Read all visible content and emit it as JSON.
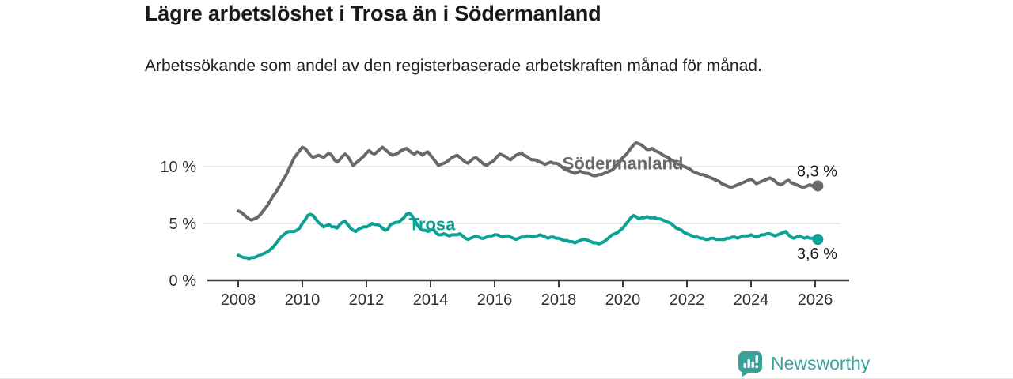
{
  "header": {
    "title": "Lägre arbetslöshet i Trosa än i Södermanland",
    "subtitle": "Arbetssökande som andel av den registerbaserade arbetskraften månad för månad."
  },
  "footer": {
    "brand": "Newsworthy",
    "brand_color": "#3ba29a",
    "logo_icon": "bar-chart-speech-bubble-icon"
  },
  "colors": {
    "axis": "#3a3a3a",
    "gridline": "#d9d9d9",
    "tick_text": "#2e2e2e",
    "value_label_text": "#1a1a1a"
  },
  "chart_data": {
    "type": "line",
    "unit": "%",
    "x_start": {
      "year": 2008,
      "month": 1
    },
    "x_end": {
      "year": 2026,
      "month": 2
    },
    "x_tick_labels": [
      "2008",
      "2010",
      "2012",
      "2014",
      "2016",
      "2018",
      "2020",
      "2022",
      "2024",
      "2026"
    ],
    "x_tick_years": [
      2008,
      2010,
      2012,
      2014,
      2016,
      2018,
      2020,
      2022,
      2024,
      2026
    ],
    "y_ticks": [
      {
        "value": 0,
        "label": "0 %"
      },
      {
        "value": 5,
        "label": "5 %"
      },
      {
        "value": 10,
        "label": "10 %"
      }
    ],
    "ylim": [
      0,
      12.7
    ],
    "grid": "horizontal",
    "legend_position": "inline-labels",
    "series": [
      {
        "name": "Södermanland",
        "color": "#67696c",
        "end_value": 8.3,
        "end_label": "8,3 %",
        "end_label_position": "above",
        "label_anchor": {
          "year": 2020.0,
          "pct": 10.3
        },
        "values": [
          6.1,
          6.0,
          5.8,
          5.6,
          5.4,
          5.3,
          5.4,
          5.5,
          5.7,
          6.0,
          6.3,
          6.6,
          7.0,
          7.4,
          7.7,
          8.1,
          8.5,
          8.9,
          9.3,
          9.8,
          10.3,
          10.8,
          11.1,
          11.4,
          11.7,
          11.6,
          11.3,
          11.0,
          10.8,
          10.9,
          11.0,
          10.9,
          10.8,
          11.0,
          11.2,
          11.0,
          10.6,
          10.4,
          10.6,
          10.9,
          11.1,
          10.9,
          10.5,
          10.1,
          10.3,
          10.5,
          10.7,
          10.9,
          11.2,
          11.4,
          11.2,
          11.1,
          11.3,
          11.5,
          11.7,
          11.5,
          11.3,
          11.1,
          11.0,
          11.1,
          11.2,
          11.4,
          11.5,
          11.6,
          11.4,
          11.2,
          11.1,
          11.3,
          11.2,
          11.0,
          11.2,
          11.3,
          11.0,
          10.7,
          10.4,
          10.1,
          10.2,
          10.3,
          10.4,
          10.6,
          10.8,
          10.9,
          11.0,
          10.8,
          10.6,
          10.4,
          10.3,
          10.5,
          10.7,
          10.8,
          10.6,
          10.4,
          10.2,
          10.1,
          10.3,
          10.4,
          10.6,
          10.9,
          11.1,
          11.0,
          10.9,
          10.7,
          10.6,
          10.8,
          11.0,
          11.1,
          11.2,
          11.0,
          10.9,
          10.7,
          10.6,
          10.6,
          10.5,
          10.4,
          10.3,
          10.2,
          10.3,
          10.4,
          10.3,
          10.3,
          10.2,
          10.0,
          9.8,
          9.7,
          9.6,
          9.5,
          9.4,
          9.5,
          9.6,
          9.5,
          9.4,
          9.4,
          9.3,
          9.2,
          9.2,
          9.3,
          9.3,
          9.4,
          9.5,
          9.6,
          9.7,
          9.9,
          10.2,
          10.5,
          10.8,
          11.0,
          11.3,
          11.6,
          11.9,
          12.1,
          12.0,
          11.9,
          11.7,
          11.5,
          11.5,
          11.6,
          11.4,
          11.3,
          11.2,
          11.0,
          10.9,
          10.8,
          10.6,
          10.5,
          10.3,
          10.2,
          10.1,
          10.0,
          9.9,
          9.8,
          9.6,
          9.5,
          9.4,
          9.3,
          9.3,
          9.2,
          9.1,
          9.0,
          8.9,
          8.8,
          8.7,
          8.5,
          8.4,
          8.3,
          8.2,
          8.2,
          8.3,
          8.4,
          8.5,
          8.6,
          8.7,
          8.8,
          8.9,
          8.7,
          8.5,
          8.6,
          8.7,
          8.8,
          8.9,
          9.0,
          8.9,
          8.7,
          8.5,
          8.4,
          8.5,
          8.7,
          8.8,
          8.6,
          8.5,
          8.4,
          8.3,
          8.2,
          8.2,
          8.3,
          8.4,
          8.3,
          8.2,
          8.3
        ]
      },
      {
        "name": "Trosa",
        "color": "#0ba295",
        "end_value": 3.6,
        "end_label": "3,6 %",
        "end_label_position": "below",
        "label_anchor": {
          "year": 2014.05,
          "pct": 4.95
        },
        "values": [
          2.2,
          2.1,
          2.0,
          2.0,
          1.9,
          2.0,
          2.0,
          2.1,
          2.2,
          2.3,
          2.4,
          2.5,
          2.7,
          2.9,
          3.2,
          3.5,
          3.8,
          4.0,
          4.2,
          4.3,
          4.3,
          4.3,
          4.4,
          4.6,
          5.0,
          5.3,
          5.7,
          5.8,
          5.7,
          5.4,
          5.1,
          4.9,
          4.7,
          4.8,
          4.9,
          4.7,
          4.7,
          4.6,
          4.9,
          5.1,
          5.2,
          4.9,
          4.6,
          4.4,
          4.3,
          4.5,
          4.6,
          4.7,
          4.7,
          4.8,
          5.0,
          4.9,
          4.9,
          4.8,
          4.6,
          4.4,
          4.5,
          4.9,
          5.0,
          5.1,
          5.1,
          5.3,
          5.5,
          5.8,
          5.9,
          5.7,
          5.3,
          4.9,
          4.6,
          4.4,
          4.4,
          4.3,
          4.4,
          4.5,
          4.2,
          4.0,
          4.0,
          4.1,
          4.0,
          3.9,
          4.0,
          4.0,
          4.0,
          4.1,
          3.9,
          3.7,
          3.6,
          3.7,
          3.8,
          3.9,
          3.8,
          3.7,
          3.7,
          3.8,
          3.9,
          3.9,
          4.0,
          4.0,
          3.9,
          3.8,
          3.9,
          3.9,
          3.8,
          3.7,
          3.6,
          3.7,
          3.8,
          3.8,
          3.9,
          3.9,
          3.8,
          3.9,
          3.9,
          4.0,
          3.9,
          3.8,
          3.7,
          3.8,
          3.8,
          3.7,
          3.7,
          3.6,
          3.5,
          3.5,
          3.4,
          3.4,
          3.3,
          3.4,
          3.5,
          3.6,
          3.6,
          3.5,
          3.4,
          3.3,
          3.3,
          3.2,
          3.3,
          3.4,
          3.6,
          3.8,
          4.0,
          4.1,
          4.2,
          4.4,
          4.6,
          4.9,
          5.2,
          5.5,
          5.7,
          5.6,
          5.4,
          5.5,
          5.5,
          5.6,
          5.5,
          5.5,
          5.5,
          5.4,
          5.4,
          5.3,
          5.2,
          5.1,
          5.0,
          4.8,
          4.6,
          4.5,
          4.4,
          4.2,
          4.1,
          4.0,
          3.9,
          3.8,
          3.8,
          3.7,
          3.7,
          3.6,
          3.6,
          3.7,
          3.7,
          3.6,
          3.6,
          3.6,
          3.6,
          3.7,
          3.7,
          3.8,
          3.8,
          3.7,
          3.8,
          3.9,
          3.9,
          3.9,
          4.0,
          3.9,
          3.8,
          3.9,
          4.0,
          4.0,
          4.1,
          4.1,
          4.0,
          3.9,
          4.0,
          4.1,
          4.2,
          4.3,
          4.0,
          3.8,
          3.7,
          3.8,
          3.9,
          3.8,
          3.7,
          3.8,
          3.7,
          3.7,
          3.6,
          3.6
        ]
      }
    ]
  }
}
